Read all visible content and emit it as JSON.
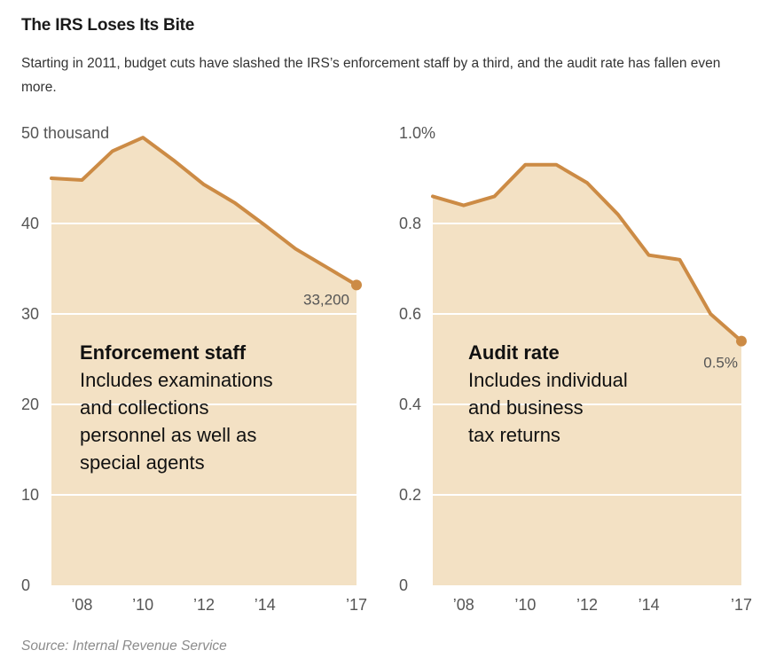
{
  "header": {
    "title": "The IRS Loses Its Bite",
    "subtitle": "Starting in 2011, budget cuts have slashed the IRS’s enforcement staff by a third, and the audit rate has fallen even more."
  },
  "source": "Source: Internal Revenue Service",
  "colors": {
    "fill": "#f3e1c4",
    "line": "#cc8b45",
    "grid": "#ffffff",
    "text": "#1a1a1a",
    "muted": "#555555"
  },
  "chart_data": [
    {
      "type": "area",
      "title": "Enforcement staff",
      "annotation_lines": [
        "Includes examinations",
        "and collections",
        "personnel as well as",
        "special agents"
      ],
      "x": [
        2007,
        2008,
        2009,
        2010,
        2011,
        2012,
        2013,
        2014,
        2015,
        2016,
        2017
      ],
      "values": [
        45,
        44.8,
        48,
        49.5,
        47,
        44.3,
        42.3,
        39.8,
        37.2,
        35.2,
        33.2
      ],
      "xlim": [
        2007,
        2017
      ],
      "ylim": [
        0,
        50
      ],
      "y_ticks": [
        0,
        10,
        20,
        30,
        40,
        50
      ],
      "y_tick_labels": [
        "0",
        "10",
        "20",
        "30",
        "40",
        "50 thousand"
      ],
      "x_ticks": [
        2008,
        2010,
        2012,
        2014,
        2017
      ],
      "x_tick_labels": [
        "’08",
        "’10",
        "’12",
        "’14",
        "’17"
      ],
      "end_label": "33,200"
    },
    {
      "type": "area",
      "title": "Audit rate",
      "annotation_lines": [
        "Includes individual",
        "and business",
        "tax returns"
      ],
      "x": [
        2007,
        2008,
        2009,
        2010,
        2011,
        2012,
        2013,
        2014,
        2015,
        2016,
        2017
      ],
      "values": [
        0.86,
        0.84,
        0.86,
        0.93,
        0.93,
        0.89,
        0.82,
        0.73,
        0.72,
        0.6,
        0.54
      ],
      "xlim": [
        2007,
        2017
      ],
      "ylim": [
        0,
        1.0
      ],
      "y_ticks": [
        0,
        0.2,
        0.4,
        0.6,
        0.8,
        1.0
      ],
      "y_tick_labels": [
        "0",
        "0.2",
        "0.4",
        "0.6",
        "0.8",
        "1.0%"
      ],
      "x_ticks": [
        2008,
        2010,
        2012,
        2014,
        2017
      ],
      "x_tick_labels": [
        "’08",
        "’10",
        "’12",
        "’14",
        "’17"
      ],
      "end_label": "0.5%"
    }
  ]
}
